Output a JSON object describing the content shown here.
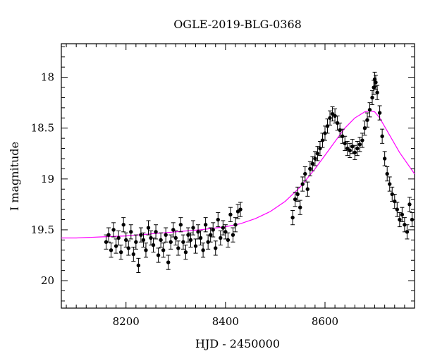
{
  "chart_data": {
    "type": "scatter",
    "title": "OGLE-2019-BLG-0368",
    "xlabel": "HJD - 2450000",
    "ylabel": "I magnitude",
    "xlim": [
      8070,
      8780
    ],
    "ylim": [
      20.27,
      17.67
    ],
    "y_inverted": true,
    "x_ticks": [
      8200,
      8400,
      8600
    ],
    "y_ticks": [
      18,
      18.5,
      19,
      19.5,
      20
    ],
    "y_tick_labels": [
      "18",
      "18.5",
      "19",
      "19.5",
      "20"
    ],
    "x_tick_labels": [
      "8200",
      "8400",
      "8600"
    ],
    "grid": false,
    "legend": "none",
    "colors": {
      "points": "#000000",
      "model": "#ff00ff"
    },
    "series": [
      {
        "kind": "points_with_errorbars",
        "x": [
          8160,
          8165,
          8170,
          8175,
          8180,
          8185,
          8190,
          8195,
          8200,
          8205,
          8210,
          8215,
          8220,
          8225,
          8230,
          8235,
          8240,
          8245,
          8250,
          8255,
          8260,
          8265,
          8270,
          8275,
          8280,
          8285,
          8290,
          8295,
          8300,
          8305,
          8310,
          8315,
          8320,
          8325,
          8330,
          8335,
          8340,
          8345,
          8350,
          8355,
          8360,
          8365,
          8370,
          8375,
          8380,
          8385,
          8390,
          8395,
          8400,
          8405,
          8410,
          8415,
          8420,
          8425,
          8430,
          8535,
          8540,
          8545,
          8550,
          8555,
          8560,
          8565,
          8570,
          8575,
          8580,
          8585,
          8590,
          8595,
          8600,
          8605,
          8610,
          8615,
          8620,
          8625,
          8630,
          8635,
          8640,
          8645,
          8650,
          8655,
          8660,
          8665,
          8670,
          8675,
          8680,
          8685,
          8690,
          8695,
          8698,
          8700,
          8702,
          8705,
          8710,
          8715,
          8720,
          8725,
          8730,
          8735,
          8740,
          8745,
          8750,
          8755,
          8760,
          8765,
          8770,
          8775
        ],
        "y": [
          19.62,
          19.55,
          19.7,
          19.5,
          19.66,
          19.58,
          19.72,
          19.45,
          19.6,
          19.68,
          19.52,
          19.74,
          19.62,
          19.85,
          19.55,
          19.6,
          19.7,
          19.48,
          19.58,
          19.65,
          19.52,
          19.75,
          19.6,
          19.7,
          19.55,
          19.82,
          19.62,
          19.5,
          19.58,
          19.68,
          19.45,
          19.62,
          19.72,
          19.55,
          19.6,
          19.48,
          19.66,
          19.52,
          19.58,
          19.7,
          19.45,
          19.62,
          19.55,
          19.5,
          19.68,
          19.4,
          19.58,
          19.48,
          19.52,
          19.6,
          19.35,
          19.55,
          19.45,
          19.32,
          19.3,
          19.38,
          19.2,
          19.15,
          19.28,
          19.05,
          18.95,
          19.1,
          18.9,
          18.85,
          18.8,
          18.75,
          18.7,
          18.62,
          18.55,
          18.48,
          18.4,
          18.36,
          18.38,
          18.45,
          18.52,
          18.58,
          18.65,
          18.7,
          18.72,
          18.68,
          18.74,
          18.7,
          18.66,
          18.62,
          18.5,
          18.42,
          18.32,
          18.2,
          18.1,
          18.02,
          18.05,
          18.15,
          18.35,
          18.58,
          18.8,
          18.95,
          19.05,
          19.15,
          19.22,
          19.3,
          19.4,
          19.35,
          19.45,
          19.52,
          19.25,
          19.4
        ],
        "yerr": 0.07
      },
      {
        "kind": "model_curve",
        "x": [
          8070,
          8100,
          8150,
          8200,
          8250,
          8300,
          8350,
          8400,
          8430,
          8460,
          8490,
          8520,
          8550,
          8580,
          8610,
          8640,
          8660,
          8680,
          8690,
          8700,
          8710,
          8730,
          8750,
          8780
        ],
        "y": [
          19.58,
          19.58,
          19.57,
          19.56,
          19.54,
          19.52,
          19.5,
          19.47,
          19.44,
          19.39,
          19.32,
          19.22,
          19.08,
          18.9,
          18.7,
          18.5,
          18.4,
          18.34,
          18.33,
          18.34,
          18.4,
          18.57,
          18.74,
          18.95
        ]
      }
    ]
  }
}
